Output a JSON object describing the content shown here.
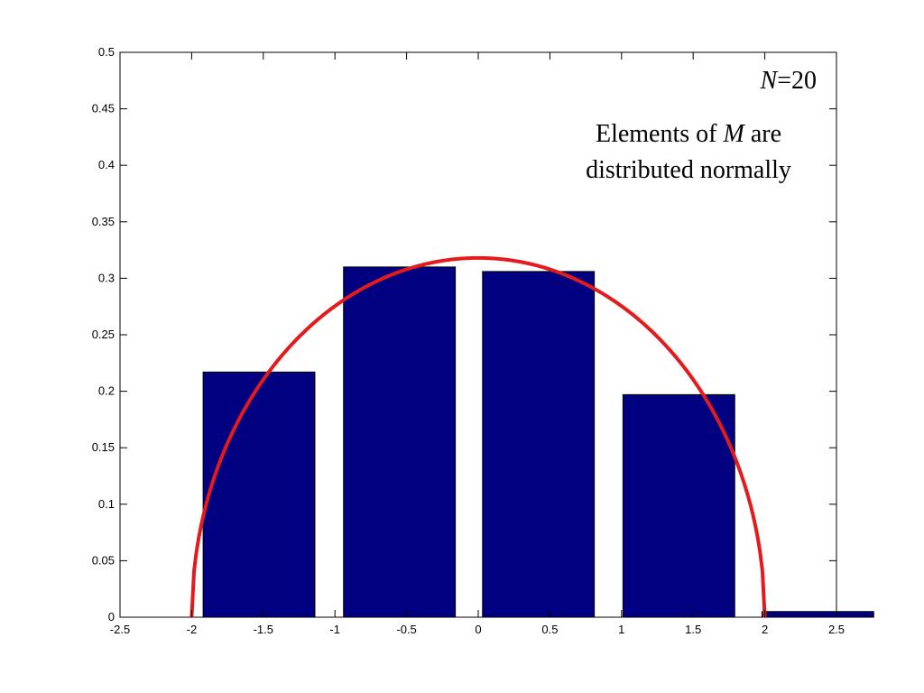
{
  "chart_data": {
    "type": "bar",
    "title": "",
    "xlabel": "",
    "ylabel": "",
    "xlim": [
      -2.5,
      2.5
    ],
    "ylim": [
      0,
      0.5
    ],
    "xticks": [
      "-2.5",
      "-2",
      "-1.5",
      "-1",
      "-0.5",
      "0",
      "0.5",
      "1",
      "1.5",
      "2",
      "2.5"
    ],
    "yticks": [
      "0",
      "0.05",
      "0.1",
      "0.15",
      "0.2",
      "0.25",
      "0.3",
      "0.35",
      "0.4",
      "0.45",
      "0.5"
    ],
    "grid": false,
    "bars": {
      "color": "#000080",
      "centers": [
        -1.53,
        -0.55,
        0.42,
        1.4,
        2.37
      ],
      "values": [
        0.217,
        0.31,
        0.306,
        0.197,
        0.005
      ],
      "width": 0.78
    },
    "curve": {
      "type": "semicircle",
      "color": "#e41a1c",
      "radius": 2,
      "peak": 0.318
    },
    "annotations": {
      "n_label_italic": "N",
      "n_label_rest": "=20",
      "desc_line1_pre": "Elements of ",
      "desc_line1_italic": "M",
      "desc_line1_post": " are",
      "desc_line2": "distributed normally"
    }
  }
}
